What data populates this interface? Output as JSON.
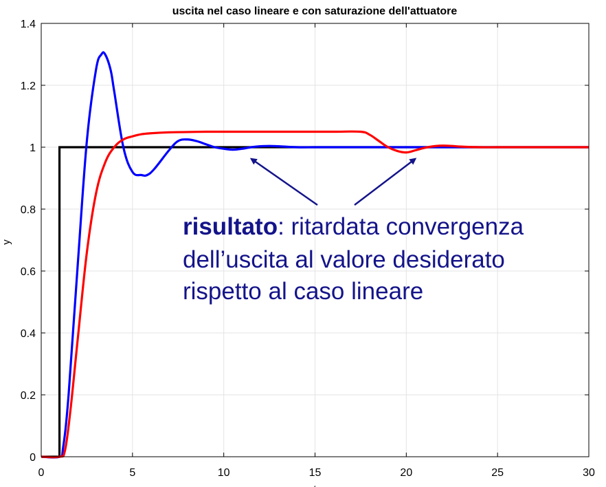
{
  "chart_data": {
    "type": "line",
    "title": "uscita nel caso lineare e con saturazione dell'attuatore",
    "xlabel": "t",
    "ylabel": "y",
    "xlim": [
      0,
      30
    ],
    "ylim": [
      0,
      1.4
    ],
    "x_ticks": [
      "0",
      "5",
      "10",
      "15",
      "20",
      "25",
      "30"
    ],
    "y_ticks": [
      "0",
      "0.2",
      "0.4",
      "0.6",
      "0.8",
      "1",
      "1.2",
      "1.4"
    ],
    "x_tick_values": [
      0,
      5,
      10,
      15,
      20,
      25,
      30
    ],
    "y_tick_values": [
      0,
      0.2,
      0.4,
      0.6,
      0.8,
      1,
      1.2,
      1.4
    ],
    "grid": true,
    "series": [
      {
        "color": "#000000",
        "x": [
          0,
          1,
          1,
          30
        ],
        "y": [
          0,
          0,
          1,
          1
        ]
      },
      {
        "color": "#0000ff",
        "x": [
          0,
          1,
          1.2,
          1.5,
          2,
          2.5,
          3,
          3.3,
          3.5,
          3.8,
          4,
          4.5,
          5,
          5.5,
          5.8,
          6.2,
          7,
          7.5,
          8,
          8.5,
          9,
          9.5,
          10,
          10.5,
          11,
          11.5,
          12,
          12.5,
          13,
          14,
          15,
          16,
          18,
          20,
          25,
          30
        ],
        "y": [
          0,
          0,
          0.03,
          0.2,
          0.62,
          1.02,
          1.25,
          1.3,
          1.3,
          1.25,
          1.18,
          1.0,
          0.92,
          0.91,
          0.91,
          0.93,
          0.99,
          1.02,
          1.025,
          1.02,
          1.01,
          1.0,
          0.995,
          0.992,
          0.995,
          1.0,
          1.003,
          1.004,
          1.003,
          1.0,
          1.0,
          1.0,
          1.0,
          1.0,
          1.0,
          1.0
        ]
      },
      {
        "color": "#ff0000",
        "x": [
          0,
          1,
          1.3,
          1.6,
          2,
          2.5,
          3,
          3.5,
          4,
          4.5,
          5,
          5.5,
          6,
          7,
          8,
          9,
          10,
          12,
          14,
          16,
          17.5,
          18,
          18.5,
          19,
          19.5,
          20,
          20.5,
          21,
          21.5,
          22,
          22.5,
          23,
          24,
          25,
          27,
          30
        ],
        "y": [
          0,
          0,
          0.02,
          0.15,
          0.38,
          0.66,
          0.85,
          0.95,
          1.0,
          1.025,
          1.035,
          1.042,
          1.045,
          1.048,
          1.049,
          1.05,
          1.05,
          1.05,
          1.05,
          1.05,
          1.05,
          1.04,
          1.02,
          1.0,
          0.988,
          0.983,
          0.99,
          0.998,
          1.003,
          1.005,
          1.004,
          1.002,
          1.0,
          1.0,
          1.0,
          1.0
        ]
      }
    ],
    "annotation": {
      "bold": "risultato",
      "rest_line1": ": ritardata convergenza",
      "line2": "dell’uscita al valore desiderato",
      "line3": "rispetto al caso lineare",
      "color": "#14148a",
      "arrow_targets": [
        {
          "x": 11.5,
          "y": 0.985
        },
        {
          "x": 20.5,
          "y": 0.985
        }
      ]
    }
  }
}
